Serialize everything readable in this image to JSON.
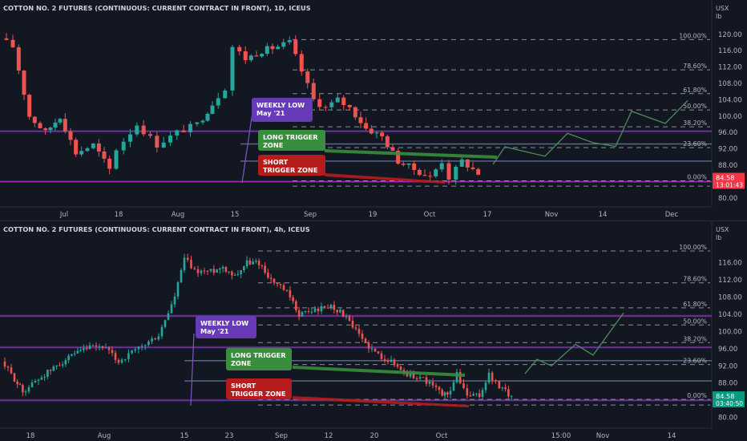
{
  "chart_data": [
    {
      "type": "candlestick",
      "title": "COTTON NO. 2 FUTURES (CONTINUOUS: CURRENT CONTRACT IN FRONT), 1D, ICEUS",
      "currency": "USX",
      "unit": "lb",
      "ylim": [
        79,
        122.5
      ],
      "y_ticks": [
        "120.00",
        "116.00",
        "112.00",
        "108.00",
        "104.00",
        "100.00",
        "96.00",
        "92.00",
        "88.00",
        "80.00"
      ],
      "x_ticks": [
        "Jul",
        "18",
        "Aug",
        "15",
        "Sep",
        "19",
        "Oct",
        "17",
        "Nov",
        "14",
        "Dec"
      ],
      "last_price": "84.58",
      "countdown": "13:01:43",
      "fib_levels": [
        {
          "label": "100.00%",
          "value": 118.7
        },
        {
          "label": "78.60%",
          "value": 111.3
        },
        {
          "label": "61.80%",
          "value": 105.5
        },
        {
          "label": "50.00%",
          "value": 101.5
        },
        {
          "label": "38.20%",
          "value": 97.4
        },
        {
          "label": "23.60%",
          "value": 92.3
        },
        {
          "label": "0.00%",
          "value": 84.2
        }
      ],
      "annotations": {
        "weekly_low": "WEEKLY LOW\nMay '21",
        "long_zone": "LONG TRIGGER\nZONE",
        "short_zone": "SHORT\nTRIGGER ZONE"
      }
    },
    {
      "type": "candlestick",
      "title": "COTTON NO. 2 FUTURES (CONTINUOUS: CURRENT CONTRACT IN FRONT), 4h, ICEUS",
      "currency": "USX",
      "unit": "lb",
      "ylim": [
        79,
        121.5
      ],
      "y_ticks": [
        "116.00",
        "112.00",
        "108.00",
        "104.00",
        "100.00",
        "96.00",
        "92.00",
        "88.00",
        "80.00"
      ],
      "x_ticks": [
        "18",
        "Aug",
        "15",
        "23",
        "Sep",
        "12",
        "20",
        "Oct",
        "15:00",
        "Nov",
        "14"
      ],
      "last_price": "84.58",
      "countdown": "03:40:50",
      "fib_levels": [
        {
          "label": "100.00%",
          "value": 118.7
        },
        {
          "label": "78.60%",
          "value": 111.3
        },
        {
          "label": "61.80%",
          "value": 105.5
        },
        {
          "label": "50.00%",
          "value": 101.5
        },
        {
          "label": "38.20%",
          "value": 97.4
        },
        {
          "label": "23.60%",
          "value": 92.3
        },
        {
          "label": "0.00%",
          "value": 84.2
        }
      ],
      "annotations": {
        "weekly_low": "WEEKLY LOW\nMay '21",
        "long_zone": "LONG TRIGGER\nZONE",
        "short_zone": "SHORT\nTRIGGER ZONE"
      }
    }
  ],
  "colors": {
    "background": "#131722",
    "grid": "#2a2e39",
    "up": "#26a69a",
    "down": "#ef5350",
    "purple": "#673ab7",
    "long": "#388e3c",
    "short": "#b71c1c",
    "text": "#d1d4dc",
    "axis_text": "#b2b5be"
  }
}
